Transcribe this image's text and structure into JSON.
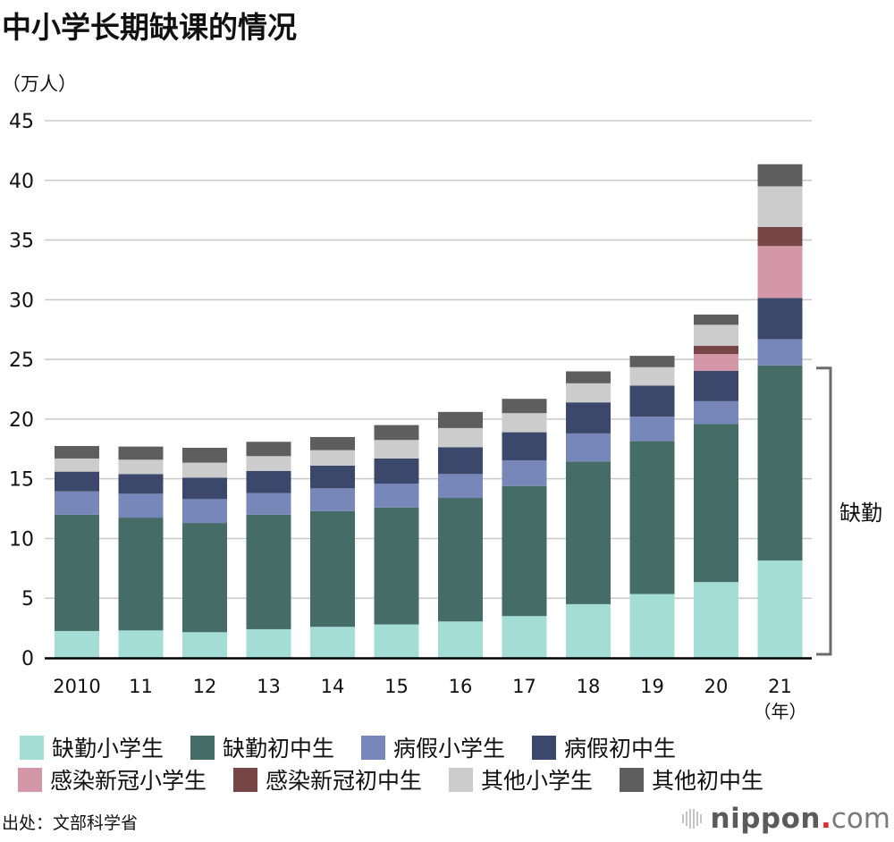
{
  "title": "中小学长期缺课的情况",
  "unit_label": "（万人）",
  "source": "出处：文部科学省",
  "brand": {
    "name": "nippon",
    "dot": ".",
    "tld": "com"
  },
  "chart_data": {
    "type": "bar",
    "stacked": true,
    "title": "中小学长期缺课的情况",
    "xlabel": "（年）",
    "ylabel": "（万人）",
    "ylim": [
      0,
      45
    ],
    "yticks": [
      0,
      5,
      10,
      15,
      20,
      25,
      30,
      35,
      40,
      45
    ],
    "grid": true,
    "legend_position": "bottom",
    "categories": [
      "2010",
      "11",
      "12",
      "13",
      "14",
      "15",
      "16",
      "17",
      "18",
      "19",
      "20",
      "21"
    ],
    "series": [
      {
        "name": "缺勤小学生",
        "color": "#a4ddd6",
        "values": [
          2.25,
          2.3,
          2.15,
          2.4,
          2.6,
          2.8,
          3.05,
          3.5,
          4.5,
          5.35,
          6.35,
          8.15
        ]
      },
      {
        "name": "缺勤初中生",
        "color": "#456c67",
        "values": [
          9.75,
          9.45,
          9.15,
          9.6,
          9.7,
          9.8,
          10.35,
          10.9,
          11.95,
          12.8,
          13.25,
          16.35
        ]
      },
      {
        "name": "病假小学生",
        "color": "#7787b9",
        "values": [
          1.95,
          2.0,
          2.0,
          1.8,
          1.9,
          2.0,
          2.0,
          2.15,
          2.35,
          2.05,
          1.9,
          2.2
        ]
      },
      {
        "name": "病假初中生",
        "color": "#3b486b",
        "values": [
          1.65,
          1.65,
          1.8,
          1.85,
          1.9,
          2.1,
          2.25,
          2.35,
          2.6,
          2.6,
          2.55,
          3.45
        ]
      },
      {
        "name": "感染新冠小学生",
        "color": "#d497a8",
        "values": [
          0,
          0,
          0,
          0,
          0,
          0,
          0,
          0,
          0,
          0,
          1.4,
          4.35
        ]
      },
      {
        "name": "感染新冠初中生",
        "color": "#764545",
        "values": [
          0,
          0,
          0,
          0,
          0,
          0,
          0,
          0,
          0,
          0,
          0.7,
          1.6
        ]
      },
      {
        "name": "其他小学生",
        "color": "#cccccc",
        "values": [
          1.1,
          1.2,
          1.25,
          1.25,
          1.3,
          1.55,
          1.6,
          1.6,
          1.6,
          1.55,
          1.75,
          3.4
        ]
      },
      {
        "name": "其他初中生",
        "color": "#5e5e5e",
        "values": [
          1.05,
          1.1,
          1.25,
          1.2,
          1.1,
          1.25,
          1.35,
          1.2,
          1.0,
          0.95,
          0.86,
          1.85
        ]
      }
    ],
    "annotations": [
      {
        "text": "缺勤",
        "bracket_from": 0,
        "bracket_to": 24.5,
        "category": "21"
      }
    ]
  }
}
